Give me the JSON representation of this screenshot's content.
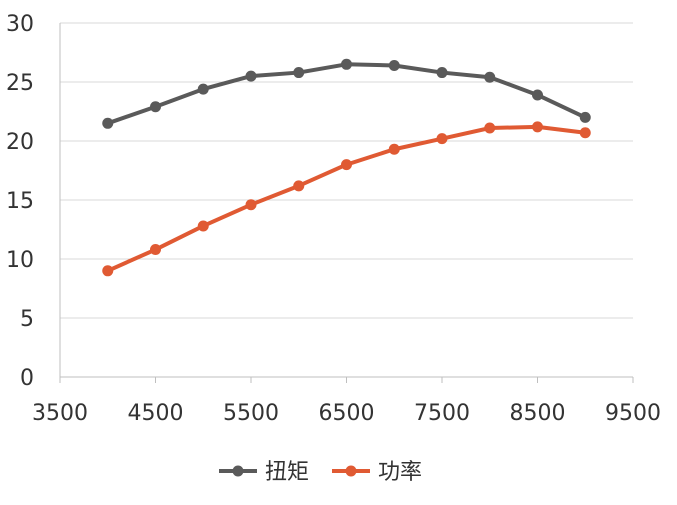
{
  "chart_data": {
    "type": "line",
    "x": [
      4000,
      4500,
      5000,
      5500,
      6000,
      6500,
      7000,
      7500,
      8000,
      8500,
      9000
    ],
    "series": [
      {
        "name": "扭矩",
        "color": "#5a5a5a",
        "values": [
          21.5,
          22.9,
          24.4,
          25.5,
          25.8,
          26.5,
          26.4,
          25.8,
          25.4,
          23.9,
          22.0
        ]
      },
      {
        "name": "功率",
        "color": "#e05a33",
        "values": [
          9.0,
          10.8,
          12.8,
          14.6,
          16.2,
          18.0,
          19.3,
          20.2,
          21.1,
          21.2,
          20.7
        ]
      }
    ],
    "xlim": [
      3500,
      9500
    ],
    "ylim": [
      0,
      30
    ],
    "x_ticks": [
      3500,
      4500,
      5500,
      6500,
      7500,
      8500,
      9500
    ],
    "y_ticks": [
      0,
      5,
      10,
      15,
      20,
      25,
      30
    ],
    "grid": "horizontal",
    "legend_position": "bottom",
    "title": "",
    "xlabel": "",
    "ylabel": ""
  }
}
